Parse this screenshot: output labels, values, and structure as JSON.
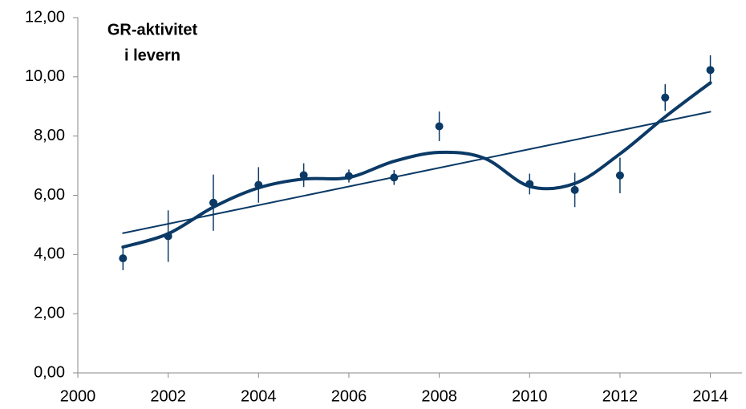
{
  "chart_data": {
    "type": "scatter",
    "title_lines": [
      "GR-aktivitet",
      "i levern"
    ],
    "xlim": [
      2000,
      2014.7
    ],
    "xticks": [
      2000,
      2002,
      2004,
      2006,
      2008,
      2010,
      2012,
      2014
    ],
    "ylim": [
      0,
      12
    ],
    "yticks": [
      {
        "value": 0,
        "label": "0,00"
      },
      {
        "value": 2,
        "label": "2,00"
      },
      {
        "value": 4,
        "label": "4,00"
      },
      {
        "value": 6,
        "label": "6,00"
      },
      {
        "value": 8,
        "label": "8,00"
      },
      {
        "value": 10,
        "label": "10,00"
      },
      {
        "value": 12,
        "label": "12,00"
      }
    ],
    "grid": false,
    "series": [
      {
        "type": "scatter",
        "color": "#0b3a66",
        "x": [
          2001,
          2002,
          2003,
          2004,
          2005,
          2006,
          2007,
          2008,
          2010,
          2011,
          2012,
          2013,
          2014
        ],
        "values": [
          3.87,
          4.62,
          5.75,
          6.35,
          6.68,
          6.65,
          6.6,
          8.33,
          6.38,
          6.18,
          6.67,
          9.3,
          10.23
        ],
        "errors": [
          0.4,
          0.87,
          0.95,
          0.6,
          0.4,
          0.22,
          0.25,
          0.5,
          0.35,
          0.58,
          0.6,
          0.45,
          0.5
        ]
      },
      {
        "type": "line",
        "smooth": true,
        "color": "#0b3a66",
        "width": 4,
        "x": [
          2001,
          2002,
          2003,
          2004,
          2005,
          2006,
          2007,
          2008,
          2009,
          2010,
          2011,
          2012,
          2013,
          2014
        ],
        "values": [
          4.25,
          4.7,
          5.6,
          6.25,
          6.55,
          6.6,
          7.15,
          7.45,
          7.25,
          6.3,
          6.4,
          7.4,
          8.65,
          9.8
        ]
      },
      {
        "type": "line",
        "smooth": false,
        "color": "#0b3a66",
        "width": 2,
        "x": [
          2001,
          2014
        ],
        "values": [
          4.72,
          8.82
        ]
      }
    ]
  }
}
